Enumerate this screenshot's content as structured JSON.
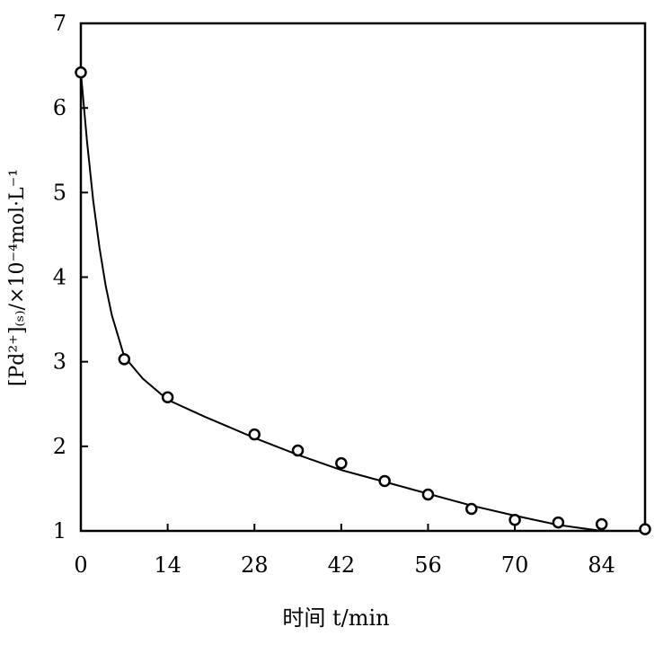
{
  "chart_data": {
    "type": "scatter",
    "title": "",
    "xlabel": "时间 t/min",
    "ylabel": "[Pd²⁺]₍ₛ₎/×10⁻⁴mol·L⁻¹",
    "xlim": [
      0,
      91
    ],
    "ylim": [
      1,
      7
    ],
    "xticks": [
      0,
      14,
      28,
      42,
      56,
      70,
      84
    ],
    "yticks": [
      1,
      2,
      3,
      4,
      5,
      6,
      7
    ],
    "grid": false,
    "legend": "none",
    "series": [
      {
        "kind": "markers",
        "marker": "open-circle",
        "x": [
          0,
          7,
          14,
          28,
          35,
          42,
          49,
          56,
          63,
          70,
          77,
          84,
          91
        ],
        "y": [
          6.42,
          3.03,
          2.58,
          2.14,
          1.95,
          1.8,
          1.59,
          1.43,
          1.26,
          1.13,
          1.1,
          1.08,
          1.02
        ]
      },
      {
        "kind": "line",
        "x": [
          0,
          1,
          2,
          3,
          4,
          5,
          7,
          10,
          14,
          20,
          28,
          35,
          42,
          49,
          56,
          63,
          70,
          77,
          80,
          84,
          88,
          91
        ],
        "y": [
          6.42,
          5.6,
          4.9,
          4.35,
          3.9,
          3.55,
          3.06,
          2.8,
          2.55,
          2.35,
          2.1,
          1.9,
          1.72,
          1.58,
          1.44,
          1.3,
          1.18,
          1.07,
          1.04,
          1.0,
          1.0,
          1.0
        ]
      }
    ]
  }
}
